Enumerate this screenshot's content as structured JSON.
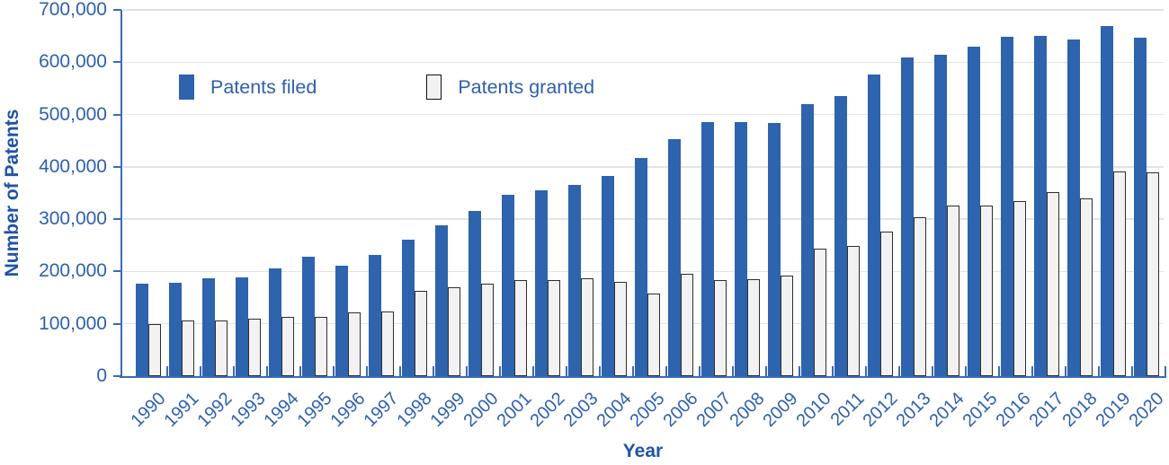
{
  "colors": {
    "filed_bar": "#2E63AD",
    "granted_bar_fill": "#F2F2F2",
    "granted_bar_border": "#2E2E2E",
    "axis_line": "#3A6BB5",
    "gridline": "#E3E3E3",
    "tick_label_text": "#2D60AE",
    "axis_title_text": "#2053A5",
    "background": "#FFFFFF"
  },
  "chart_data": {
    "type": "bar",
    "title": "",
    "xlabel": "Year",
    "ylabel": "Number of Patents",
    "ylim": [
      0,
      700000
    ],
    "y_tick_step": 100000,
    "y_tick_labels": [
      "0",
      "100,000",
      "200,000",
      "300,000",
      "400,000",
      "500,000",
      "600,000",
      "700,000"
    ],
    "grid": true,
    "legend_position": "inside-top-left",
    "categories": [
      "1990",
      "1991",
      "1992",
      "1993",
      "1994",
      "1995",
      "1996",
      "1997",
      "1998",
      "1999",
      "2000",
      "2001",
      "2002",
      "2003",
      "2004",
      "2005",
      "2006",
      "2007",
      "2008",
      "2009",
      "2010",
      "2011",
      "2012",
      "2013",
      "2014",
      "2015",
      "2016",
      "2017",
      "2018",
      "2019",
      "2020"
    ],
    "series": [
      {
        "name": "Patents filed",
        "color": "#2E63AD",
        "values": [
          176000,
          178000,
          187000,
          189000,
          206000,
          228000,
          211000,
          232000,
          261000,
          289000,
          315000,
          346000,
          356000,
          366000,
          382000,
          417000,
          453000,
          485000,
          485000,
          483000,
          520000,
          535000,
          577000,
          609000,
          615000,
          630000,
          649000,
          651000,
          643000,
          669000,
          646000
        ]
      },
      {
        "name": "Patents granted",
        "color": "#F2F2F2",
        "border_color": "#2E2E2E",
        "values": [
          99000,
          107000,
          107000,
          110000,
          114000,
          114000,
          122000,
          124000,
          163000,
          169000,
          176000,
          184000,
          184000,
          187000,
          181000,
          158000,
          196000,
          183000,
          185000,
          192000,
          244000,
          248000,
          277000,
          303000,
          326000,
          326000,
          334000,
          352000,
          340000,
          391000,
          389000
        ]
      }
    ]
  }
}
